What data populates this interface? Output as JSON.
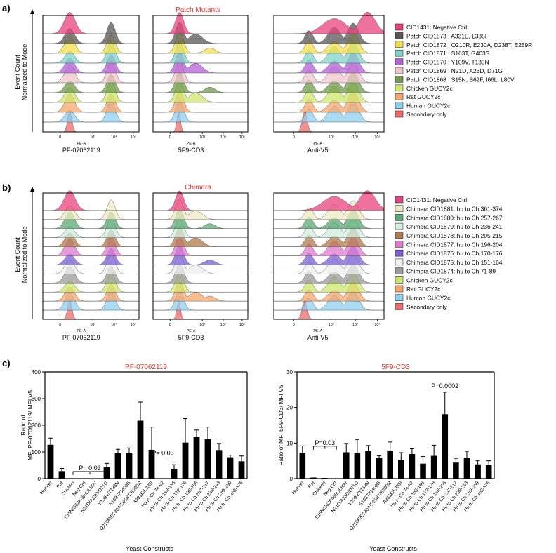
{
  "panel_a": {
    "letter": "a)",
    "title": "Patch Mutants",
    "ylabel_1": "Event Count",
    "ylabel_2": "Normalized to Mode",
    "tick_labels": [
      "0",
      "10³",
      "10⁴",
      "10⁵"
    ],
    "axis_name": "PE-A",
    "columns": [
      "PF-07062119",
      "5F9-CD3",
      "Anti-V5"
    ],
    "legend": [
      {
        "label": "CID1431: Negative Ctrl",
        "color": "#e8417d"
      },
      {
        "label": "Patch CID1873 : A331E, L335I",
        "color": "#555555"
      },
      {
        "label": "Patch CID1872 : Q210R, E230A, D238T, E259R",
        "color": "#f2e04a"
      },
      {
        "label": "Patch CID1871 : S163T, G403S",
        "color": "#7fd6c8"
      },
      {
        "label": "Patch CID1870 : Y109V, T133N",
        "color": "#b35fd6"
      },
      {
        "label": "Patch CID1869 : N21D, A23D, D71G",
        "color": "#f0c6cc"
      },
      {
        "label": "Patch CID1868 : S15N, S62F, I66L, L80V",
        "color": "#6f9a4a"
      },
      {
        "label": "Chicken GUCY2c",
        "color": "#cfe86a"
      },
      {
        "label": "Rat GUCY2c",
        "color": "#f7a76a"
      },
      {
        "label": "Human GUCY2c",
        "color": "#8fd0ef"
      },
      {
        "label": "Secondary only",
        "color": "#f06a6a"
      }
    ]
  },
  "panel_b": {
    "letter": "b)",
    "title": "Chimera",
    "ylabel_1": "Event Count",
    "ylabel_2": "Normalized to Mode",
    "tick_labels": [
      "0",
      "10³",
      "10⁴",
      "10⁵"
    ],
    "axis_name": "PE-A",
    "columns": [
      "PF-07062119",
      "5F9-CD3",
      "Anti-V5"
    ],
    "legend": [
      {
        "label": "CID1431: Negative Ctrl",
        "color": "#e8417d"
      },
      {
        "label": "Chimera CID1881: hu to Ch 361-374",
        "color": "#efe9c2"
      },
      {
        "label": "Chimera CID1880: hu to Ch 257-267",
        "color": "#5aa872"
      },
      {
        "label": "Chimera CID1879: hu to Ch 236-241",
        "color": "#cfeedd"
      },
      {
        "label": "Chimera CID1878: hu to Ch 205-215",
        "color": "#b07a4a"
      },
      {
        "label": "Chimera CID1877: hu to Ch 196-204",
        "color": "#e07ad0"
      },
      {
        "label": "Chimera CID1876: hu to Ch 170-176",
        "color": "#7b5fd6"
      },
      {
        "label": "Chimera CID1875: hu to Ch 151-164",
        "color": "#eeeeee"
      },
      {
        "label": "Chimera CID1874: hu to Ch  71-89",
        "color": "#999999"
      },
      {
        "label": "Chicken GUCY2c",
        "color": "#cfe86a"
      },
      {
        "label": "Rat GUCY2c",
        "color": "#f7a76a"
      },
      {
        "label": "Human GUCY2c",
        "color": "#8fd0ef"
      },
      {
        "label": "Secondary only",
        "color": "#f06a6a"
      }
    ]
  },
  "panel_c": {
    "letter": "c)",
    "xlabel": "Yeast Constructs"
  },
  "chart_data": [
    {
      "type": "bar",
      "title": "PF-07062119",
      "ylabel_1": "Ratio of",
      "ylabel_2": "MFI PF-07062119/ MFI V5",
      "xlabel": "Yeast Constructs",
      "ylim": [
        0,
        400
      ],
      "yticks": [
        0,
        100,
        200,
        300,
        400
      ],
      "categories": [
        "Human",
        "Rat",
        "Chicken",
        "Neg Ctrl",
        "S15N/S62F/I66L/L80V",
        "N21D/A23D/D71G",
        "Y109V/T133N",
        "S163T/G403S",
        "Q210R/E230A/D238T/E259R",
        "A331E/L335I",
        "Hu to Ch 74-92",
        "Hu to Ch 153-166",
        "Hu to Ch 172-178",
        "Hu to Ch 198-206",
        "Hu to Ch 207-217",
        "Hu to Ch 238-243",
        "Hu to Ch 259-269",
        "Hu to Ch 363-376"
      ],
      "values": [
        127,
        28,
        1,
        1,
        1,
        42,
        95,
        95,
        217,
        108,
        1,
        37,
        135,
        157,
        148,
        107,
        80,
        65
      ],
      "errors": [
        25,
        10,
        0,
        0,
        0,
        15,
        15,
        20,
        70,
        85,
        0,
        15,
        90,
        25,
        45,
        25,
        8,
        20
      ],
      "annotations": [
        {
          "text": "P= 0.03",
          "category_index": 4,
          "value": 45
        },
        {
          "text": "P= 0.03",
          "category_index": 10,
          "value": 88
        }
      ]
    },
    {
      "type": "bar",
      "title": "5F9-CD3",
      "ylabel_1": "Ratio of MFI 5F9-CD3/ MFI V5",
      "xlabel": "Yeast Constructs",
      "ylim": [
        0,
        30
      ],
      "yticks": [
        0,
        10,
        20,
        30
      ],
      "categories": [
        "Human",
        "Rat",
        "Chicken",
        "Neg Ctrl",
        "S15N/S62F/I66L/L80V",
        "N21D/A23D/D71G",
        "Y109V/T133N",
        "S163T/G403S",
        "Q210R/E230A/D238T/E259R",
        "A331E/L335I",
        "Hu to Ch 74-92",
        "Hu to Ch 153-166",
        "Hu to Ch 172-178",
        "Hu to Ch 198-206",
        "Hu to Ch 207-217",
        "Hu to Ch 238-243",
        "Hu to Ch 259-269",
        "Hu to Ch 363-376"
      ],
      "values": [
        7.2,
        0.3,
        0.2,
        0.1,
        7.4,
        7.2,
        7.8,
        5.9,
        7.9,
        5.3,
        6.9,
        4.2,
        6.4,
        18.1,
        4.5,
        5.9,
        4.0,
        3.8
      ],
      "errors": [
        2.0,
        0,
        0,
        0,
        2.5,
        3.8,
        1.5,
        0.5,
        2.4,
        2.0,
        1.5,
        2.0,
        3.0,
        6.2,
        1.2,
        1.8,
        1.0,
        1.2
      ],
      "annotations": [
        {
          "text": "P=0.03",
          "category_index": 2,
          "value": 10.5
        },
        {
          "text": "P=0.0002",
          "category_index": 13,
          "value": 25.5
        }
      ]
    }
  ]
}
